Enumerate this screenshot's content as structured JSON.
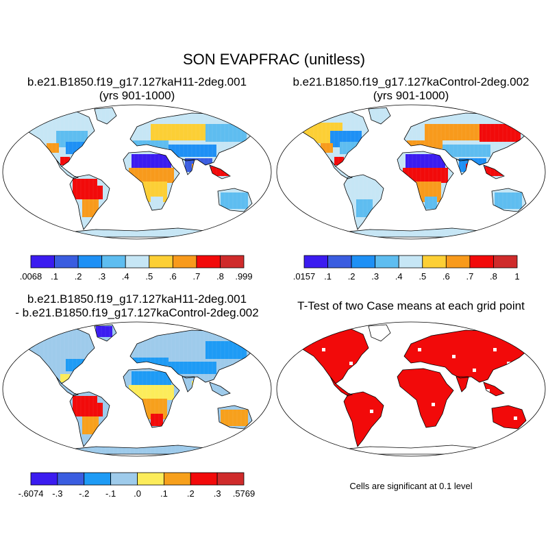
{
  "title": "SON EVAPFRAC (unitless)",
  "colors": {
    "ctrl_cb": [
      "#3b1cf0",
      "#3a5de0",
      "#1e90f5",
      "#5ebdf0",
      "#c6e6f5",
      "#fccf35",
      "#f89a1c",
      "#f20a0a",
      "#cf2b2b"
    ],
    "diff_cb": [
      "#3b1cf0",
      "#3a5de0",
      "#1e9bf5",
      "#9ecbeb",
      "#fcec5a",
      "#f7a01c",
      "#f20a0a",
      "#cf2b2b"
    ],
    "significance": "#f20a0a"
  },
  "panels": [
    {
      "name": "case-mean",
      "title_line1": "b.e21.B1850.f19_g17.127kaH11-2deg.001",
      "title_line2": "(yrs 901-1000)",
      "colorbar_labels": [
        ".0068",
        ".1",
        ".2",
        ".3",
        ".4",
        ".5",
        ".6",
        ".7",
        ".8",
        ".999"
      ]
    },
    {
      "name": "control-mean",
      "title_line1": "b.e21.B1850.f19_g17.127kaControl-2deg.002",
      "title_line2": "(yrs 901-1000)",
      "colorbar_labels": [
        ".0157",
        ".1",
        ".2",
        ".3",
        ".4",
        ".5",
        ".6",
        ".7",
        ".8",
        "1"
      ]
    },
    {
      "name": "difference",
      "title_line1": "b.e21.B1850.f19_g17.127kaH11-2deg.001",
      "title_line2": "- b.e21.B1850.f19_g17.127kaControl-2deg.002",
      "colorbar_labels": [
        "-.6074",
        "-.3",
        "-.2",
        "-.1",
        ".0",
        ".1",
        ".2",
        ".3",
        ".5769"
      ]
    },
    {
      "name": "t-test",
      "title_line1": "T-Test of two Case means at each grid point",
      "note": "Cells are significant at 0.1 level"
    }
  ]
}
